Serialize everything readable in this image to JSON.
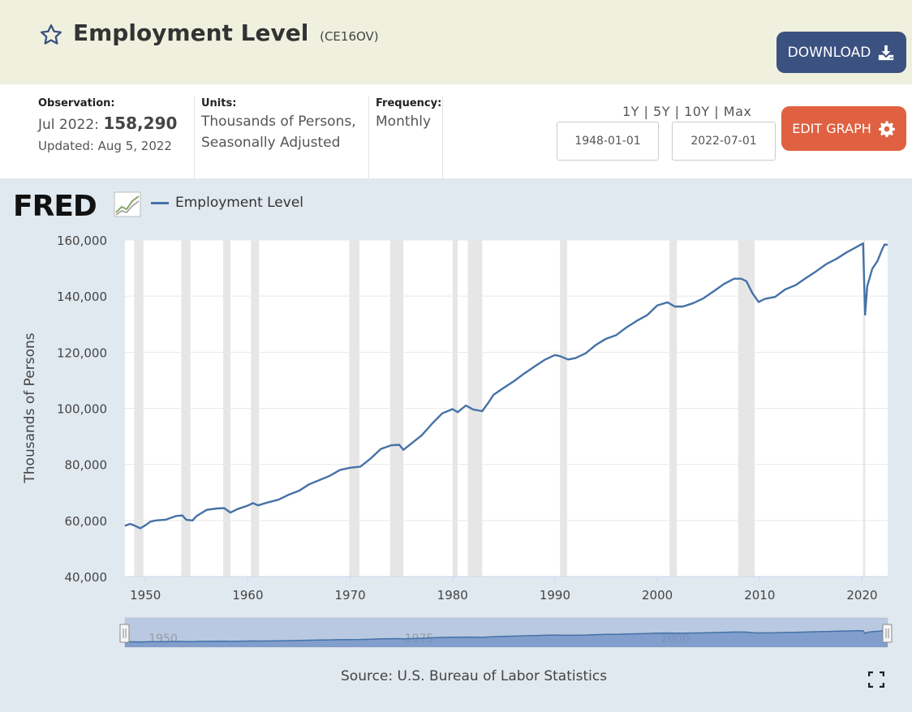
{
  "header": {
    "title": "Employment Level",
    "series_id": "(CE16OV)",
    "download_label": "DOWNLOAD"
  },
  "info": {
    "observation_label": "Observation:",
    "observation_period": "Jul 2022:",
    "observation_value": "158,290",
    "updated": "Updated: Aug 5, 2022",
    "units_label": "Units:",
    "units_line1": "Thousands of Persons,",
    "units_line2": "Seasonally Adjusted",
    "frequency_label": "Frequency:",
    "frequency_value": "Monthly"
  },
  "controls": {
    "range_1y": "1Y",
    "range_5y": "5Y",
    "range_10y": "10Y",
    "range_max": "Max",
    "separator": "|",
    "start_date": "1948-01-01",
    "end_date": "2022-07-01",
    "edit_label": "EDIT GRAPH"
  },
  "branding": {
    "logo_text": "FRED"
  },
  "source": "Source: U.S. Bureau of Labor Statistics",
  "colors": {
    "line": "#4572a7",
    "recession": "#e6e6e6",
    "download": "#3b5180",
    "edit": "#df6141"
  },
  "chart_data": {
    "type": "line",
    "ylabel": "Thousands of Persons",
    "ylim": [
      40000,
      160000
    ],
    "yticks": [
      40000,
      60000,
      80000,
      100000,
      120000,
      140000,
      160000
    ],
    "ytick_labels": [
      "40,000",
      "60,000",
      "80,000",
      "100,000",
      "120,000",
      "140,000",
      "160,000"
    ],
    "xlim": [
      1948.0,
      2022.5
    ],
    "xticks": [
      1950,
      1960,
      1970,
      1980,
      1990,
      2000,
      2010,
      2020
    ],
    "xtick_labels": [
      "1950",
      "1960",
      "1970",
      "1980",
      "1990",
      "2000",
      "2010",
      "2020"
    ],
    "navigator_labels": [
      {
        "x": 1950,
        "label": "1950"
      },
      {
        "x": 1975,
        "label": "1975"
      },
      {
        "x": 2000,
        "label": "2000"
      }
    ],
    "legend": "top-left",
    "grid": true,
    "series": [
      {
        "name": "Employment Level",
        "points": [
          [
            1948.0,
            58100
          ],
          [
            1948.5,
            58800
          ],
          [
            1949.0,
            58100
          ],
          [
            1949.5,
            57200
          ],
          [
            1950.0,
            58300
          ],
          [
            1950.5,
            59600
          ],
          [
            1951.0,
            60000
          ],
          [
            1952.0,
            60300
          ],
          [
            1953.0,
            61600
          ],
          [
            1953.6,
            61800
          ],
          [
            1954.0,
            60200
          ],
          [
            1954.6,
            60000
          ],
          [
            1955.0,
            61600
          ],
          [
            1956.0,
            63800
          ],
          [
            1957.0,
            64300
          ],
          [
            1957.7,
            64400
          ],
          [
            1958.3,
            62800
          ],
          [
            1959.0,
            64100
          ],
          [
            1960.0,
            65300
          ],
          [
            1960.5,
            66200
          ],
          [
            1961.0,
            65400
          ],
          [
            1962.0,
            66500
          ],
          [
            1963.0,
            67400
          ],
          [
            1964.0,
            69200
          ],
          [
            1965.0,
            70600
          ],
          [
            1966.0,
            72900
          ],
          [
            1967.0,
            74400
          ],
          [
            1968.0,
            75900
          ],
          [
            1969.0,
            78000
          ],
          [
            1970.0,
            78800
          ],
          [
            1971.0,
            79200
          ],
          [
            1972.0,
            82100
          ],
          [
            1973.0,
            85500
          ],
          [
            1974.0,
            86800
          ],
          [
            1974.8,
            87000
          ],
          [
            1975.2,
            85200
          ],
          [
            1976.0,
            87500
          ],
          [
            1977.0,
            90400
          ],
          [
            1978.0,
            94500
          ],
          [
            1979.0,
            98200
          ],
          [
            1980.0,
            99700
          ],
          [
            1980.5,
            98600
          ],
          [
            1981.3,
            101000
          ],
          [
            1982.0,
            99600
          ],
          [
            1982.9,
            99000
          ],
          [
            1983.5,
            102000
          ],
          [
            1984.0,
            104800
          ],
          [
            1985.0,
            107300
          ],
          [
            1986.0,
            109700
          ],
          [
            1987.0,
            112400
          ],
          [
            1988.0,
            114900
          ],
          [
            1989.0,
            117300
          ],
          [
            1990.0,
            119000
          ],
          [
            1990.5,
            118600
          ],
          [
            1991.3,
            117400
          ],
          [
            1992.0,
            117900
          ],
          [
            1993.0,
            119600
          ],
          [
            1994.0,
            122600
          ],
          [
            1995.0,
            124800
          ],
          [
            1996.0,
            126100
          ],
          [
            1997.0,
            128900
          ],
          [
            1998.0,
            131200
          ],
          [
            1999.0,
            133200
          ],
          [
            2000.0,
            136700
          ],
          [
            2001.0,
            137800
          ],
          [
            2001.7,
            136300
          ],
          [
            2002.5,
            136300
          ],
          [
            2003.5,
            137500
          ],
          [
            2004.5,
            139200
          ],
          [
            2005.5,
            141700
          ],
          [
            2006.5,
            144300
          ],
          [
            2007.5,
            146200
          ],
          [
            2008.2,
            146200
          ],
          [
            2008.7,
            145300
          ],
          [
            2009.3,
            141000
          ],
          [
            2009.9,
            137900
          ],
          [
            2010.5,
            139000
          ],
          [
            2011.5,
            139700
          ],
          [
            2012.5,
            142400
          ],
          [
            2013.5,
            143900
          ],
          [
            2014.5,
            146400
          ],
          [
            2015.5,
            148800
          ],
          [
            2016.5,
            151400
          ],
          [
            2017.5,
            153300
          ],
          [
            2018.5,
            155600
          ],
          [
            2019.5,
            157600
          ],
          [
            2020.1,
            158800
          ],
          [
            2020.3,
            133400
          ],
          [
            2020.5,
            143500
          ],
          [
            2021.0,
            149800
          ],
          [
            2021.5,
            152500
          ],
          [
            2022.0,
            157000
          ],
          [
            2022.2,
            158400
          ],
          [
            2022.5,
            158290
          ]
        ]
      }
    ],
    "recessions": [
      [
        1948.9,
        1949.8
      ],
      [
        1953.5,
        1954.4
      ],
      [
        1957.6,
        1958.3
      ],
      [
        1960.3,
        1961.1
      ],
      [
        1969.9,
        1970.9
      ],
      [
        1973.9,
        1975.2
      ],
      [
        1980.0,
        1980.5
      ],
      [
        1981.5,
        1982.9
      ],
      [
        1990.5,
        1991.2
      ],
      [
        2001.2,
        2001.9
      ],
      [
        2007.9,
        2009.5
      ],
      [
        2020.1,
        2020.3
      ]
    ]
  }
}
